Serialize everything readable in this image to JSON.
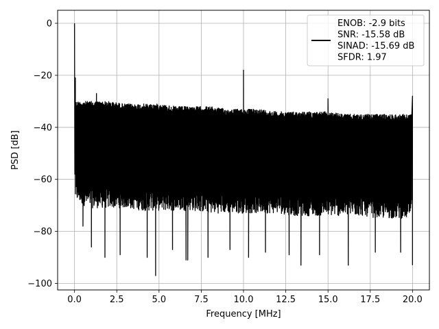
{
  "chart_data": {
    "type": "line",
    "xlabel": "Frequency [MHz]",
    "ylabel": "PSD [dB]",
    "xlim": [
      -1.0,
      21.0
    ],
    "ylim": [
      -102.5,
      5.0
    ],
    "xticks": [
      0.0,
      2.5,
      5.0,
      7.5,
      10.0,
      12.5,
      15.0,
      17.5,
      20.0
    ],
    "xtick_labels": [
      "0.0",
      "2.5",
      "5.0",
      "7.5",
      "10.0",
      "12.5",
      "15.0",
      "17.5",
      "20.0"
    ],
    "yticks": [
      0,
      -20,
      -40,
      -60,
      -80,
      -100
    ],
    "ytick_labels": [
      "0",
      "−20",
      "−40",
      "−60",
      "−80",
      "−100"
    ],
    "grid": true,
    "legend_position": "top-right",
    "legend_entries": [
      "ENOB: -2.9 bits",
      "SNR: -15.58 dB",
      "SINAD: -15.69 dB",
      "SFDR: 1.97"
    ],
    "line_color": "#000000",
    "series": [
      {
        "description": "noise-floor envelope upper",
        "x": [
          0.05,
          0.5,
          1.0,
          2.0,
          3.0,
          4.0,
          5.0,
          6.0,
          7.0,
          8.0,
          9.0,
          10.0,
          11.0,
          12.0,
          13.0,
          14.0,
          15.0,
          16.0,
          17.0,
          18.0,
          19.0,
          19.95
        ],
        "y": [
          -30,
          -30,
          -30,
          -30,
          -31,
          -31,
          -31,
          -32,
          -32,
          -32,
          -33,
          -33,
          -33,
          -34,
          -34,
          -34,
          -34,
          -35,
          -35,
          -35,
          -35,
          -35
        ]
      },
      {
        "description": "noise-floor envelope lower",
        "x": [
          0.05,
          0.5,
          1.0,
          2.0,
          3.0,
          4.0,
          5.0,
          6.0,
          7.0,
          8.0,
          9.0,
          10.0,
          11.0,
          12.0,
          13.0,
          14.0,
          15.0,
          16.0,
          17.0,
          18.0,
          19.0,
          19.95
        ],
        "y": [
          -68,
          -70,
          -71,
          -71,
          -71,
          -72,
          -72,
          -72,
          -72,
          -73,
          -73,
          -73,
          -73,
          -73,
          -74,
          -74,
          -74,
          -74,
          -74,
          -75,
          -75,
          -75
        ]
      },
      {
        "description": "spectral peaks",
        "x": [
          0.0,
          0.05,
          1.3,
          10.0,
          15.0,
          20.0
        ],
        "y": [
          0,
          -21,
          -27,
          -18,
          -29,
          -28
        ]
      },
      {
        "description": "deep dips",
        "x": [
          0.5,
          1.0,
          1.8,
          2.7,
          4.3,
          4.8,
          5.8,
          6.6,
          6.7,
          7.9,
          9.2,
          10.3,
          11.3,
          12.7,
          13.4,
          14.5,
          16.2,
          17.8,
          19.3,
          20.0
        ],
        "y": [
          -78,
          -86,
          -90,
          -89,
          -90,
          -97,
          -87,
          -91,
          -91,
          -90,
          -87,
          -90,
          -88,
          -89,
          -93,
          -89,
          -93,
          -88,
          -88,
          -93
        ]
      }
    ]
  }
}
